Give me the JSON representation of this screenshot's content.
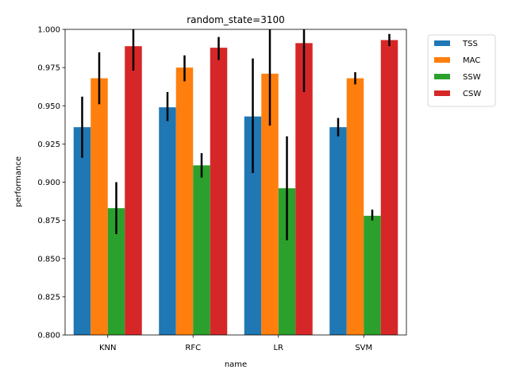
{
  "chart_data": {
    "type": "bar",
    "title": "random_state=3100",
    "xlabel": "name",
    "ylabel": "performance",
    "ylim": [
      0.8,
      1.0
    ],
    "yticks": [
      "0.800",
      "0.825",
      "0.850",
      "0.875",
      "0.900",
      "0.925",
      "0.950",
      "0.975",
      "1.000"
    ],
    "categories": [
      "KNN",
      "RFC",
      "LR",
      "SVM"
    ],
    "legend_position": "outside-top-right",
    "grid": false,
    "series": [
      {
        "name": "TSS",
        "color": "#1f77b4",
        "values": [
          0.936,
          0.949,
          0.943,
          0.936
        ],
        "err_low": [
          0.916,
          0.94,
          0.906,
          0.93
        ],
        "err_high": [
          0.956,
          0.959,
          0.981,
          0.942
        ]
      },
      {
        "name": "MAC",
        "color": "#ff7f0e",
        "values": [
          0.968,
          0.975,
          0.971,
          0.968
        ],
        "err_low": [
          0.951,
          0.966,
          0.937,
          0.964
        ],
        "err_high": [
          0.985,
          0.983,
          1.005,
          0.972
        ]
      },
      {
        "name": "SSW",
        "color": "#2ca02c",
        "values": [
          0.883,
          0.911,
          0.896,
          0.878
        ],
        "err_low": [
          0.866,
          0.903,
          0.862,
          0.875
        ],
        "err_high": [
          0.9,
          0.919,
          0.93,
          0.882
        ]
      },
      {
        "name": "CSW",
        "color": "#d62728",
        "values": [
          0.989,
          0.988,
          0.991,
          0.993
        ],
        "err_low": [
          0.973,
          0.98,
          0.959,
          0.989
        ],
        "err_high": [
          1.005,
          0.995,
          1.005,
          0.997
        ]
      }
    ]
  }
}
